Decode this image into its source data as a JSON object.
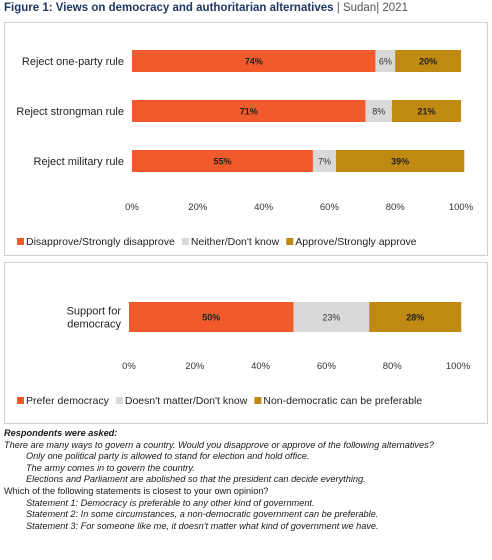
{
  "header": {
    "title_bold": "Figure 1: Views on democracy and authoritarian alternatives",
    "title_rest": " | Sudan| 2021"
  },
  "chart_data": [
    {
      "type": "bar",
      "orientation": "horizontal",
      "stacked": true,
      "categories": [
        "Reject one-party rule",
        "Reject strongman rule",
        "Reject military rule"
      ],
      "series": [
        {
          "name": "Disapprove/Strongly disapprove",
          "values": [
            74,
            71,
            55
          ],
          "labels": [
            "74%",
            "71%",
            "55%"
          ],
          "color": "#f15a2b"
        },
        {
          "name": "Neither/Don't know",
          "values": [
            6,
            8,
            7
          ],
          "labels": [
            "6%",
            "8%",
            "7%"
          ],
          "color": "#d9d9d9"
        },
        {
          "name": "Approve/Strongly approve",
          "values": [
            20,
            21,
            39
          ],
          "labels": [
            "20%",
            "21%",
            "39%"
          ],
          "color": "#c08a12"
        }
      ],
      "xlim": [
        0,
        100
      ],
      "ticks": [
        "0%",
        "20%",
        "40%",
        "60%",
        "80%",
        "100%"
      ],
      "legend_position": "bottom"
    },
    {
      "type": "bar",
      "orientation": "horizontal",
      "stacked": true,
      "categories": [
        "Support for democracy"
      ],
      "category_lines": [
        [
          "Support for",
          "democracy"
        ]
      ],
      "series": [
        {
          "name": "Prefer democracy",
          "values": [
            50
          ],
          "labels": [
            "50%"
          ],
          "color": "#f15a2b"
        },
        {
          "name": "Doesn't matter/Don't know",
          "values": [
            23
          ],
          "labels": [
            "23%"
          ],
          "color": "#d9d9d9"
        },
        {
          "name": "Non-democratic can be preferable",
          "values": [
            28
          ],
          "labels": [
            "28%"
          ],
          "color": "#c08a12"
        }
      ],
      "xlim": [
        0,
        100
      ],
      "ticks": [
        "0%",
        "20%",
        "40%",
        "60%",
        "80%",
        "100%"
      ],
      "legend_position": "bottom"
    }
  ],
  "notes": {
    "heading": "Respondents were asked:",
    "q1": "There are many ways to govern a country. Would you disapprove or approve of the following alternatives?",
    "q1_items": [
      "Only one political party is allowed to stand for election and hold office.",
      "The army comes in to govern the country.",
      "Elections and Parliament are abolished so that the president can decide everything."
    ],
    "q2": "Which of the following statements is closest to your own opinion?",
    "q2_items": [
      "Statement 1: Democracy is preferable to any other kind of government.",
      "Statement 2: In some circumstances, a non-democratic government can be preferable.",
      "Statement 3: For someone like me, it doesn't matter what kind of government we have."
    ]
  }
}
